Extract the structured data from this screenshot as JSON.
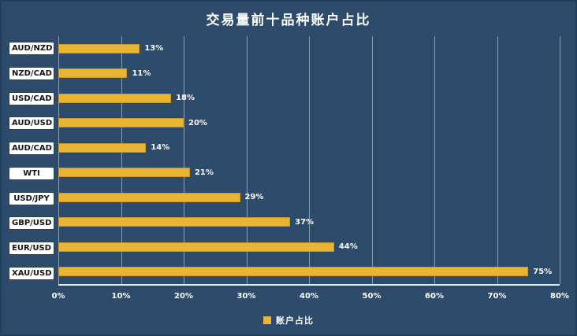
{
  "title": "交易量前十品种账户占比",
  "legend": {
    "label": "账户占比",
    "color": "#EAB433"
  },
  "colors": {
    "background": "#2D4C6B",
    "bar": "#EAB433",
    "grid": "#D6E2EC",
    "axis": "#E4EBF1",
    "label_box_bg": "#FFFFFF",
    "label_box_text": "#141414",
    "text": "#FFFFFF"
  },
  "chart_data": {
    "type": "bar",
    "orientation": "horizontal",
    "title": "交易量前十品种账户占比",
    "categories": [
      "AUD/NZD",
      "NZD/CAD",
      "USD/CAD",
      "AUD/USD",
      "AUD/CAD",
      "WTI",
      "USD/JPY",
      "GBP/USD",
      "EUR/USD",
      "XAU/USD"
    ],
    "values": [
      13,
      11,
      18,
      20,
      14,
      21,
      29,
      37,
      44,
      75
    ],
    "value_labels": [
      "13%",
      "11%",
      "18%",
      "20%",
      "14%",
      "21%",
      "29%",
      "37%",
      "44%",
      "75%"
    ],
    "xlabel": "",
    "ylabel": "",
    "xlim": [
      0,
      80
    ],
    "x_ticks": [
      "0%",
      "10%",
      "20%",
      "30%",
      "40%",
      "50%",
      "60%",
      "70%",
      "80%"
    ],
    "x_tick_values": [
      0,
      10,
      20,
      30,
      40,
      50,
      60,
      70,
      80
    ],
    "grid": "vertical",
    "legend_entries": [
      "账户占比"
    ],
    "legend_position": "bottom"
  }
}
